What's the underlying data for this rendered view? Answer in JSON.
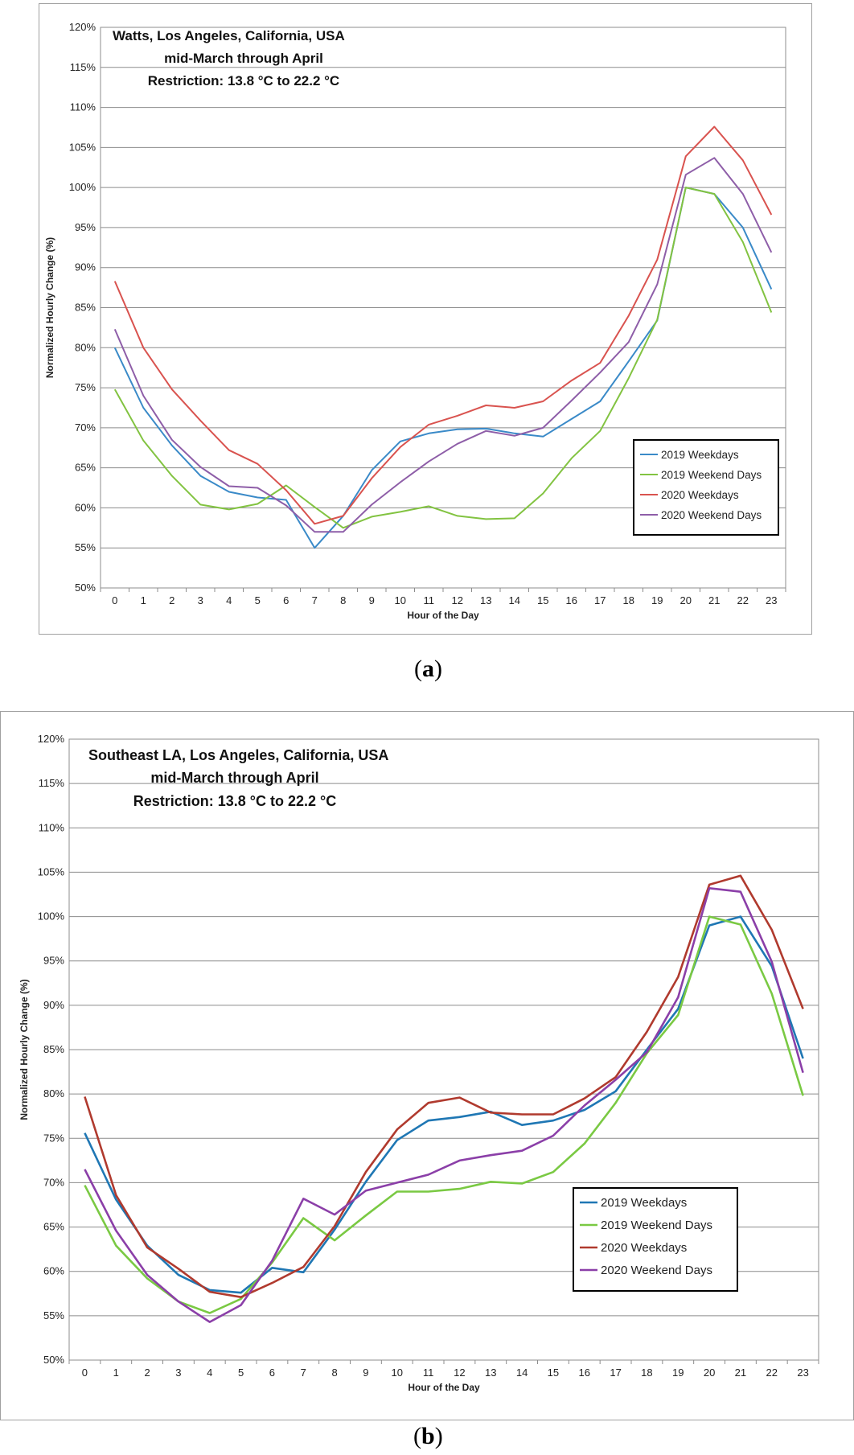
{
  "chart_data": [
    {
      "type": "line",
      "panel_label": "a",
      "annotation_lines": [
        "Watts, Los Angeles, California, USA",
        "mid-March through April",
        "Restriction: 13.8 °C to 22.2 °C"
      ],
      "xlabel": "Hour of the Day",
      "ylabel": "Normalized Hourly Change (%)",
      "x": [
        0,
        1,
        2,
        3,
        4,
        5,
        6,
        7,
        8,
        9,
        10,
        11,
        12,
        13,
        14,
        15,
        16,
        17,
        18,
        19,
        20,
        21,
        22,
        23
      ],
      "ylim": [
        50,
        120
      ],
      "yticks": [
        "50%",
        "55%",
        "60%",
        "65%",
        "70%",
        "75%",
        "80%",
        "85%",
        "90%",
        "95%",
        "100%",
        "105%",
        "110%",
        "115%",
        "120%"
      ],
      "grid": true,
      "legend_position": "bottom-right",
      "series": [
        {
          "name": "2019 Weekdays",
          "color": "#3a8ac8",
          "values": [
            80,
            72.5,
            67.8,
            64,
            62,
            61.3,
            61,
            55,
            59,
            64.7,
            68.3,
            69.3,
            69.8,
            69.9,
            69.3,
            68.9,
            71.1,
            73.3,
            78.3,
            83.4,
            100,
            99.2,
            95,
            87.3
          ]
        },
        {
          "name": "2019 Weekend Days",
          "color": "#82c341",
          "values": [
            74.8,
            68.4,
            64,
            60.4,
            59.8,
            60.5,
            62.8,
            60.1,
            57.5,
            58.9,
            59.5,
            60.2,
            59,
            58.6,
            58.7,
            61.8,
            66.2,
            69.6,
            76.2,
            83.5,
            100,
            99.2,
            93.2,
            84.4
          ]
        },
        {
          "name": "2020 Weekdays",
          "color": "#d9534f",
          "values": [
            88.3,
            80,
            74.8,
            70.9,
            67.2,
            65.5,
            62.2,
            58,
            59,
            63.7,
            67.6,
            70.4,
            71.5,
            72.8,
            72.5,
            73.3,
            75.9,
            78.1,
            84,
            91,
            103.9,
            107.6,
            103.4,
            96.6
          ]
        },
        {
          "name": "2020 Weekend Days",
          "color": "#8e5ea8",
          "values": [
            82.3,
            74,
            68.5,
            65.1,
            62.7,
            62.5,
            60.3,
            57,
            57,
            60.4,
            63.2,
            65.8,
            68,
            69.6,
            69,
            70,
            73.4,
            76.9,
            80.7,
            87.9,
            101.6,
            103.7,
            99.2,
            91.9
          ]
        }
      ]
    },
    {
      "type": "line",
      "panel_label": "b",
      "annotation_lines": [
        "Southeast LA, Los Angeles, California, USA",
        "mid-March through April",
        "Restriction: 13.8 °C to 22.2 °C"
      ],
      "xlabel": "Hour of the Day",
      "ylabel": "Normalized Hourly Change (%)",
      "x": [
        0,
        1,
        2,
        3,
        4,
        5,
        6,
        7,
        8,
        9,
        10,
        11,
        12,
        13,
        14,
        15,
        16,
        17,
        18,
        19,
        20,
        21,
        22,
        23
      ],
      "ylim": [
        50,
        120
      ],
      "yticks": [
        "50%",
        "55%",
        "60%",
        "65%",
        "70%",
        "75%",
        "80%",
        "85%",
        "90%",
        "95%",
        "100%",
        "105%",
        "110%",
        "115%",
        "120%"
      ],
      "grid": true,
      "legend_position": "bottom-right",
      "series": [
        {
          "name": "2019 Weekdays",
          "color": "#1f77b4",
          "values": [
            75.6,
            68.1,
            62.9,
            59.6,
            57.9,
            57.6,
            60.4,
            59.9,
            64.7,
            70.1,
            74.8,
            77,
            77.4,
            78,
            76.5,
            77,
            78.2,
            80.3,
            85,
            89.6,
            99,
            100,
            94.4,
            84
          ]
        },
        {
          "name": "2019 Weekend Days",
          "color": "#7ac943",
          "values": [
            69.7,
            62.9,
            59.2,
            56.6,
            55.3,
            56.9,
            61,
            66,
            63.5,
            66.3,
            69,
            69,
            69.3,
            70.1,
            69.9,
            71.2,
            74.4,
            79,
            84.6,
            88.9,
            100,
            99.1,
            91.3,
            79.8
          ]
        },
        {
          "name": "2020 Weekdays",
          "color": "#b03a2e",
          "values": [
            79.7,
            68.6,
            62.7,
            60.3,
            57.7,
            57.1,
            58.7,
            60.5,
            65.1,
            71.2,
            76,
            79,
            79.6,
            77.9,
            77.7,
            77.7,
            79.5,
            81.9,
            87,
            93.2,
            103.6,
            104.6,
            98.5,
            89.6
          ]
        },
        {
          "name": "2020 Weekend Days",
          "color": "#8b3fa8",
          "values": [
            71.5,
            64.6,
            59.6,
            56.6,
            54.3,
            56.2,
            61.2,
            68.2,
            66.4,
            69.1,
            70,
            70.9,
            72.5,
            73.1,
            73.6,
            75.3,
            78.7,
            81.6,
            84.7,
            90.9,
            103.2,
            102.8,
            94.9,
            82.4
          ]
        }
      ]
    }
  ]
}
